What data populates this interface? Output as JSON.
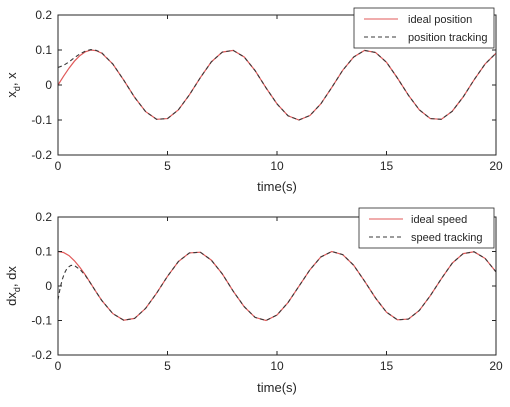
{
  "chart_data": [
    {
      "type": "line",
      "xlabel": "time(s)",
      "ylabel": {
        "main": "x",
        "sub": "d",
        "tail": ", x"
      },
      "xlim": [
        0,
        20
      ],
      "ylim": [
        -0.2,
        0.2
      ],
      "xticks": [
        0,
        5,
        10,
        15,
        20
      ],
      "yticks": [
        -0.2,
        -0.1,
        0,
        0.1,
        0.2
      ],
      "ytick_labels": [
        "-0.2",
        "-0.1",
        "0",
        "0.1",
        "0.2"
      ],
      "grid": false,
      "legend_position": "top-right",
      "series": [
        {
          "name": "ideal position",
          "color": "#e05a5a",
          "style": "solid",
          "x": [
            0,
            0.25,
            0.5,
            0.75,
            1,
            1.25,
            1.5,
            1.75,
            2,
            2.5,
            3,
            3.5,
            4,
            4.5,
            5,
            5.5,
            6,
            6.5,
            7,
            7.5,
            8,
            8.5,
            9,
            9.5,
            10,
            10.5,
            11,
            11.5,
            12,
            12.5,
            13,
            13.5,
            14,
            14.5,
            15,
            15.5,
            16,
            16.5,
            17,
            17.5,
            18,
            18.5,
            19,
            19.5,
            20
          ],
          "y": [
            0,
            0.025,
            0.048,
            0.068,
            0.084,
            0.095,
            0.1,
            0.098,
            0.091,
            0.06,
            0.014,
            -0.035,
            -0.076,
            -0.098,
            -0.096,
            -0.071,
            -0.028,
            0.021,
            0.066,
            0.094,
            0.099,
            0.08,
            0.041,
            -0.008,
            -0.054,
            -0.088,
            -0.1,
            -0.087,
            -0.054,
            -0.007,
            0.042,
            0.08,
            0.099,
            0.093,
            0.065,
            0.02,
            -0.029,
            -0.071,
            -0.096,
            -0.098,
            -0.075,
            -0.034,
            0.015,
            0.06,
            0.091
          ]
        },
        {
          "name": "position tracking",
          "color": "#3a3a3a",
          "style": "dashed",
          "x": [
            0,
            0.25,
            0.5,
            0.75,
            1,
            1.25,
            1.5,
            1.75,
            2,
            2.5,
            3,
            3.5,
            4,
            4.5,
            5,
            5.5,
            6,
            6.5,
            7,
            7.5,
            8,
            8.5,
            9,
            9.5,
            10,
            10.5,
            11,
            11.5,
            12,
            12.5,
            13,
            13.5,
            14,
            14.5,
            15,
            15.5,
            16,
            16.5,
            17,
            17.5,
            18,
            18.5,
            19,
            19.5,
            20
          ],
          "y": [
            0.05,
            0.056,
            0.066,
            0.078,
            0.089,
            0.097,
            0.101,
            0.099,
            0.092,
            0.06,
            0.014,
            -0.035,
            -0.076,
            -0.098,
            -0.096,
            -0.071,
            -0.028,
            0.021,
            0.066,
            0.094,
            0.099,
            0.08,
            0.041,
            -0.008,
            -0.054,
            -0.088,
            -0.1,
            -0.087,
            -0.054,
            -0.007,
            0.042,
            0.08,
            0.099,
            0.093,
            0.065,
            0.02,
            -0.029,
            -0.071,
            -0.096,
            -0.098,
            -0.075,
            -0.034,
            0.015,
            0.06,
            0.091
          ]
        }
      ]
    },
    {
      "type": "line",
      "xlabel": "time(s)",
      "ylabel": {
        "main": "dx",
        "sub": "d",
        "tail": ", dx"
      },
      "xlim": [
        0,
        20
      ],
      "ylim": [
        -0.2,
        0.2
      ],
      "xticks": [
        0,
        5,
        10,
        15,
        20
      ],
      "yticks": [
        -0.2,
        -0.1,
        0,
        0.1,
        0.2
      ],
      "ytick_labels": [
        "-0.2",
        "-0.1",
        "0",
        "0.1",
        "0.2"
      ],
      "grid": false,
      "legend_position": "top-right",
      "series": [
        {
          "name": "ideal speed",
          "color": "#e05a5a",
          "style": "solid",
          "x": [
            0,
            0.25,
            0.5,
            0.75,
            1,
            1.25,
            1.5,
            1.75,
            2,
            2.5,
            3,
            3.5,
            4,
            4.5,
            5,
            5.5,
            6,
            6.5,
            7,
            7.5,
            8,
            8.5,
            9,
            9.5,
            10,
            10.5,
            11,
            11.5,
            12,
            12.5,
            13,
            13.5,
            14,
            14.5,
            15,
            15.5,
            16,
            16.5,
            17,
            17.5,
            18,
            18.5,
            19,
            19.5,
            20
          ],
          "y": [
            0.1,
            0.097,
            0.088,
            0.073,
            0.054,
            0.032,
            0.007,
            -0.018,
            -0.042,
            -0.08,
            -0.099,
            -0.094,
            -0.065,
            -0.021,
            0.028,
            0.071,
            0.096,
            0.098,
            0.075,
            0.035,
            -0.015,
            -0.06,
            -0.091,
            -0.1,
            -0.084,
            -0.048,
            -0.001,
            0.047,
            0.084,
            0.1,
            0.091,
            0.06,
            0.014,
            -0.035,
            -0.076,
            -0.098,
            -0.096,
            -0.071,
            -0.028,
            0.021,
            0.066,
            0.094,
            0.099,
            0.08,
            0.041
          ]
        },
        {
          "name": "speed tracking",
          "color": "#3a3a3a",
          "style": "dashed",
          "x": [
            0,
            0.1,
            0.2,
            0.3,
            0.4,
            0.5,
            0.6,
            0.75,
            1,
            1.25,
            1.5,
            1.75,
            2,
            2.5,
            3,
            3.5,
            4,
            4.5,
            5,
            5.5,
            6,
            6.5,
            7,
            7.5,
            8,
            8.5,
            9,
            9.5,
            10,
            10.5,
            11,
            11.5,
            12,
            12.5,
            13,
            13.5,
            14,
            14.5,
            15,
            15.5,
            16,
            16.5,
            17,
            17.5,
            18,
            18.5,
            19,
            19.5,
            20
          ],
          "y": [
            -0.04,
            -0.005,
            0.02,
            0.038,
            0.05,
            0.056,
            0.06,
            0.059,
            0.048,
            0.03,
            0.007,
            -0.018,
            -0.042,
            -0.08,
            -0.099,
            -0.094,
            -0.065,
            -0.021,
            0.028,
            0.071,
            0.096,
            0.098,
            0.075,
            0.035,
            -0.015,
            -0.06,
            -0.091,
            -0.1,
            -0.084,
            -0.048,
            -0.001,
            0.047,
            0.084,
            0.1,
            0.091,
            0.06,
            0.014,
            -0.035,
            -0.076,
            -0.098,
            -0.096,
            -0.071,
            -0.028,
            0.021,
            0.066,
            0.094,
            0.099,
            0.08,
            0.041
          ]
        }
      ]
    }
  ]
}
